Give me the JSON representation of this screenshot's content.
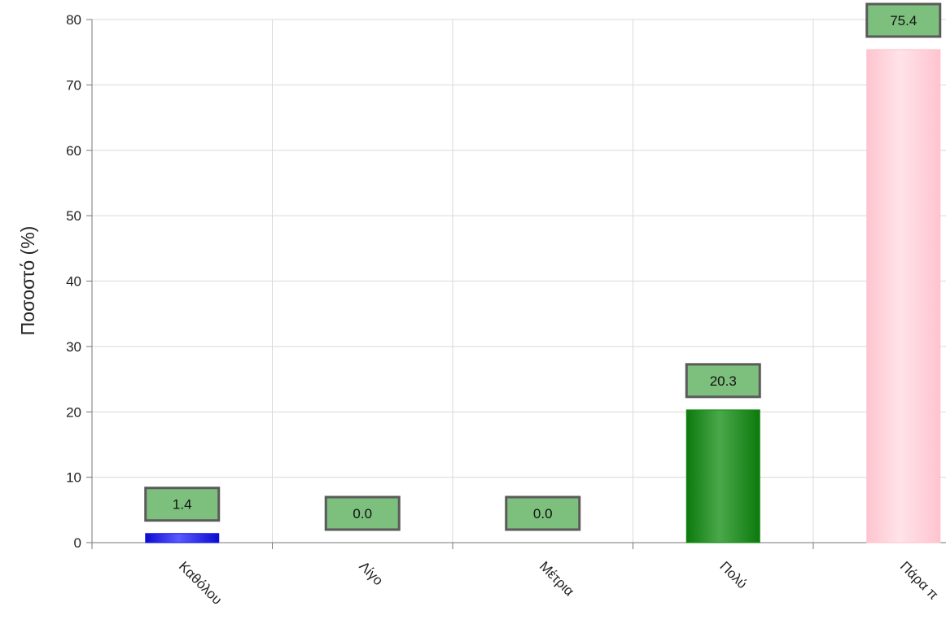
{
  "chart_data": {
    "type": "bar",
    "title": "",
    "xlabel": "",
    "ylabel": "Ποσοστό (%)",
    "ylim": [
      0,
      80
    ],
    "yticks": [
      0,
      10,
      20,
      30,
      40,
      50,
      60,
      70,
      80
    ],
    "grid": true,
    "categories": [
      "Καθόλου",
      "Λίγο",
      "Μέτρια",
      "Πολύ",
      "Πάρα π"
    ],
    "values": [
      1.4,
      0.0,
      0.0,
      20.3,
      75.4
    ],
    "value_labels": [
      "1.4",
      "0.0",
      "0.0",
      "20.3",
      "75.4"
    ],
    "bar_colors": [
      "#1010e8",
      "#1010e8",
      "#1010e8",
      "#118811",
      "#ffc0cb"
    ],
    "label_box_color": "#7dbf7d",
    "label_box_border": "#5a5a5a"
  }
}
